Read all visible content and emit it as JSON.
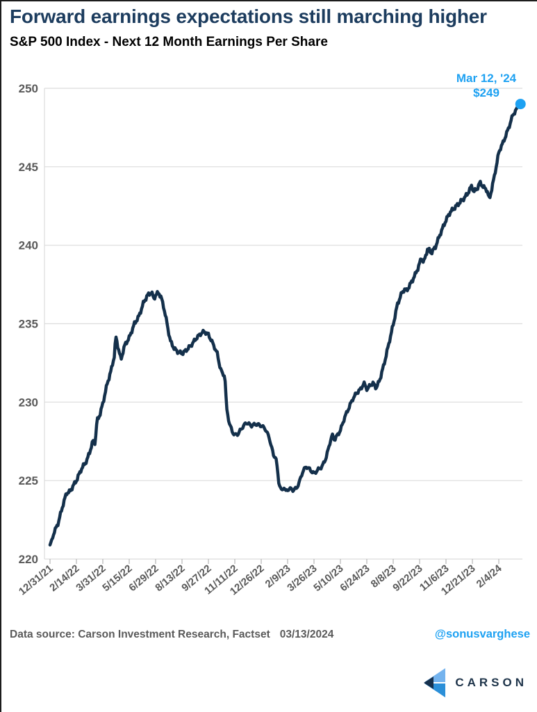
{
  "header": {
    "title": "Forward earnings expectations still marching higher",
    "subtitle": "S&P 500 Index - Next 12 Month Earnings Per Share"
  },
  "footer": {
    "source": "Data source: Carson Investment Research, Factset",
    "date": "03/13/2024",
    "handle": "@sonusvarghese"
  },
  "logo": {
    "text": "CARSON"
  },
  "colors": {
    "title_navy": "#1c3c5e",
    "line_navy": "#14304b",
    "accent_blue": "#1da1f2",
    "axis_text_gray": "#595959",
    "grid_gray": "#dcdcdc",
    "logo_light_blue": "#74b3ee",
    "logo_mid_blue": "#2b8fd8",
    "logo_dark_navy": "#16304c"
  },
  "chart_data": {
    "type": "line",
    "title": "Forward earnings expectations still marching higher",
    "subtitle": "S&P 500 Index - Next 12 Month Earnings Per Share",
    "xlabel": "",
    "ylabel": "",
    "ylim": [
      220,
      250
    ],
    "grid": "horizontal",
    "y_ticks": [
      220,
      225,
      230,
      235,
      240,
      245,
      250
    ],
    "x_tick_labels": [
      "12/31/21",
      "2/14/22",
      "3/31/22",
      "5/15/22",
      "6/29/22",
      "8/13/22",
      "9/27/22",
      "11/11/22",
      "12/26/22",
      "2/9/23",
      "3/26/23",
      "5/10/23",
      "6/24/23",
      "8/8/23",
      "9/22/23",
      "11/6/23",
      "12/21/23",
      "2/4/24"
    ],
    "x_tick_days": [
      0,
      45,
      90,
      135,
      180,
      225,
      270,
      315,
      360,
      405,
      450,
      495,
      540,
      585,
      630,
      675,
      720,
      765
    ],
    "start_date": "12/31/21",
    "end_date": "3/12/24",
    "annotation": {
      "line1": "Mar 12, '24",
      "line2": "$249",
      "point_date": "3/12/24",
      "point_value": 249
    },
    "series": [
      {
        "name": "S&P 500 Next 12 Month EPS",
        "points_days_value": [
          [
            0,
            220.9
          ],
          [
            7,
            221.7
          ],
          [
            14,
            222.3
          ],
          [
            21,
            223.3
          ],
          [
            28,
            224.2
          ],
          [
            34,
            224.3
          ],
          [
            40,
            224.7
          ],
          [
            45,
            225.0
          ],
          [
            53,
            225.7
          ],
          [
            63,
            226.3
          ],
          [
            70,
            227.1
          ],
          [
            74,
            227.6
          ],
          [
            77,
            227.4
          ],
          [
            80,
            228.8
          ],
          [
            85,
            229.2
          ],
          [
            90,
            229.9
          ],
          [
            97,
            231.1
          ],
          [
            104,
            232.0
          ],
          [
            110,
            233.0
          ],
          [
            112,
            234.2
          ],
          [
            116,
            233.5
          ],
          [
            121,
            232.7
          ],
          [
            127,
            233.6
          ],
          [
            135,
            234.1
          ],
          [
            144,
            235.0
          ],
          [
            152,
            235.5
          ],
          [
            159,
            236.3
          ],
          [
            166,
            236.8
          ],
          [
            173,
            237.0
          ],
          [
            177,
            236.6
          ],
          [
            180,
            236.8
          ],
          [
            185,
            237.0
          ],
          [
            190,
            236.6
          ],
          [
            193,
            236.2
          ],
          [
            199,
            235.1
          ],
          [
            205,
            233.9
          ],
          [
            212,
            233.4
          ],
          [
            218,
            233.2
          ],
          [
            225,
            233.1
          ],
          [
            232,
            233.3
          ],
          [
            240,
            233.6
          ],
          [
            250,
            234.1
          ],
          [
            258,
            234.4
          ],
          [
            263,
            234.5
          ],
          [
            270,
            234.3
          ],
          [
            278,
            233.7
          ],
          [
            285,
            233.1
          ],
          [
            290,
            232.2
          ],
          [
            294,
            231.8
          ],
          [
            298,
            231.7
          ],
          [
            301,
            229.6
          ],
          [
            306,
            228.6
          ],
          [
            311,
            228.1
          ],
          [
            315,
            227.9
          ],
          [
            321,
            228.0
          ],
          [
            328,
            228.4
          ],
          [
            335,
            228.7
          ],
          [
            343,
            228.5
          ],
          [
            351,
            228.6
          ],
          [
            360,
            228.5
          ],
          [
            367,
            228.3
          ],
          [
            374,
            227.7
          ],
          [
            381,
            226.6
          ],
          [
            385,
            226.5
          ],
          [
            390,
            224.9
          ],
          [
            395,
            224.3
          ],
          [
            399,
            224.6
          ],
          [
            402,
            224.3
          ],
          [
            408,
            224.5
          ],
          [
            414,
            224.4
          ],
          [
            420,
            224.5
          ],
          [
            425,
            224.9
          ],
          [
            431,
            225.6
          ],
          [
            437,
            225.9
          ],
          [
            443,
            225.7
          ],
          [
            450,
            225.45
          ],
          [
            457,
            225.7
          ],
          [
            464,
            225.9
          ],
          [
            471,
            226.5
          ],
          [
            477,
            227.4
          ],
          [
            481,
            227.9
          ],
          [
            485,
            227.6
          ],
          [
            490,
            227.9
          ],
          [
            495,
            228.2
          ],
          [
            502,
            229.0
          ],
          [
            509,
            229.6
          ],
          [
            516,
            230.2
          ],
          [
            523,
            230.6
          ],
          [
            529,
            230.8
          ],
          [
            535,
            231.2
          ],
          [
            541,
            230.8
          ],
          [
            546,
            231.1
          ],
          [
            551,
            231.2
          ],
          [
            556,
            230.9
          ],
          [
            562,
            231.4
          ],
          [
            570,
            232.5
          ],
          [
            578,
            233.8
          ],
          [
            586,
            235.1
          ],
          [
            592,
            236.2
          ],
          [
            599,
            236.9
          ],
          [
            604,
            237.2
          ],
          [
            608,
            237.1
          ],
          [
            614,
            237.5
          ],
          [
            621,
            238.0
          ],
          [
            628,
            238.6
          ],
          [
            633,
            239.2
          ],
          [
            637,
            238.9
          ],
          [
            644,
            239.8
          ],
          [
            650,
            239.5
          ],
          [
            657,
            239.9
          ],
          [
            665,
            240.7
          ],
          [
            675,
            241.6
          ],
          [
            682,
            242.1
          ],
          [
            690,
            242.4
          ],
          [
            698,
            242.7
          ],
          [
            706,
            243.0
          ],
          [
            712,
            243.3
          ],
          [
            719,
            243.8
          ],
          [
            722,
            243.4
          ],
          [
            728,
            243.6
          ],
          [
            733,
            244.0
          ],
          [
            739,
            243.7
          ],
          [
            745,
            243.5
          ],
          [
            749,
            242.9
          ],
          [
            753,
            243.6
          ],
          [
            757,
            244.3
          ],
          [
            765,
            245.9
          ],
          [
            769,
            246.3
          ],
          [
            772,
            246.5
          ],
          [
            776,
            246.9
          ],
          [
            782,
            247.5
          ],
          [
            789,
            248.3
          ],
          [
            796,
            248.7
          ],
          [
            802,
            249.0
          ]
        ]
      }
    ]
  }
}
